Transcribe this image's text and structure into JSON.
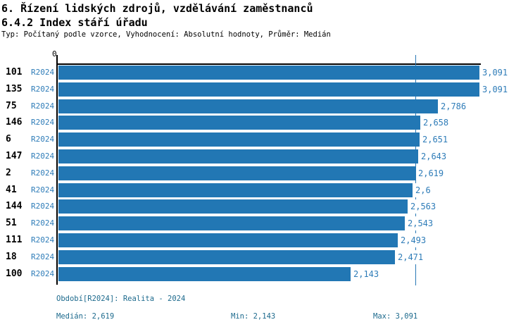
{
  "header": {
    "title_line1": "6. Řízení lidských zdrojů, vzdělávání zaměstnanců",
    "title_line2": "6.4.2 Index stáří úřadu",
    "meta": "Typ: Počítaný podle vzorce, Vyhodnocení: Absolutní hodnoty, Průměr: Medián"
  },
  "chart_data": {
    "type": "bar",
    "orientation": "horizontal",
    "title": "6.4.2 Index stáří úřadu",
    "series_label": "R2024",
    "categories": [
      "101",
      "135",
      "75",
      "146",
      "6",
      "147",
      "2",
      "41",
      "144",
      "51",
      "111",
      "18",
      "100"
    ],
    "values": [
      3.091,
      3.091,
      2.786,
      2.658,
      2.651,
      2.643,
      2.619,
      2.6,
      2.563,
      2.543,
      2.493,
      2.471,
      2.143
    ],
    "value_labels": [
      "3,091",
      "3,091",
      "2,786",
      "2,658",
      "2,651",
      "2,643",
      "2,619",
      "2,6",
      "2,563",
      "2,543",
      "2,493",
      "2,471",
      "2,143"
    ],
    "xlim": [
      0,
      3.091
    ],
    "x_tick_labels": [
      "0"
    ],
    "median_value": 2.619,
    "median_line": true,
    "grid": false,
    "legend_position": "none"
  },
  "footer": {
    "period": "Období[R2024]: Realita - 2024",
    "median": "Medián: 2,619",
    "min": "Min: 2,143",
    "max": "Max: 3,091"
  },
  "colors": {
    "bar": "#2277b4",
    "value_text": "#2e7cb8",
    "series_text": "#2e7cb8",
    "footer_text": "#1d6a8d",
    "median_line": "#2878b5",
    "axis": "#000000"
  }
}
